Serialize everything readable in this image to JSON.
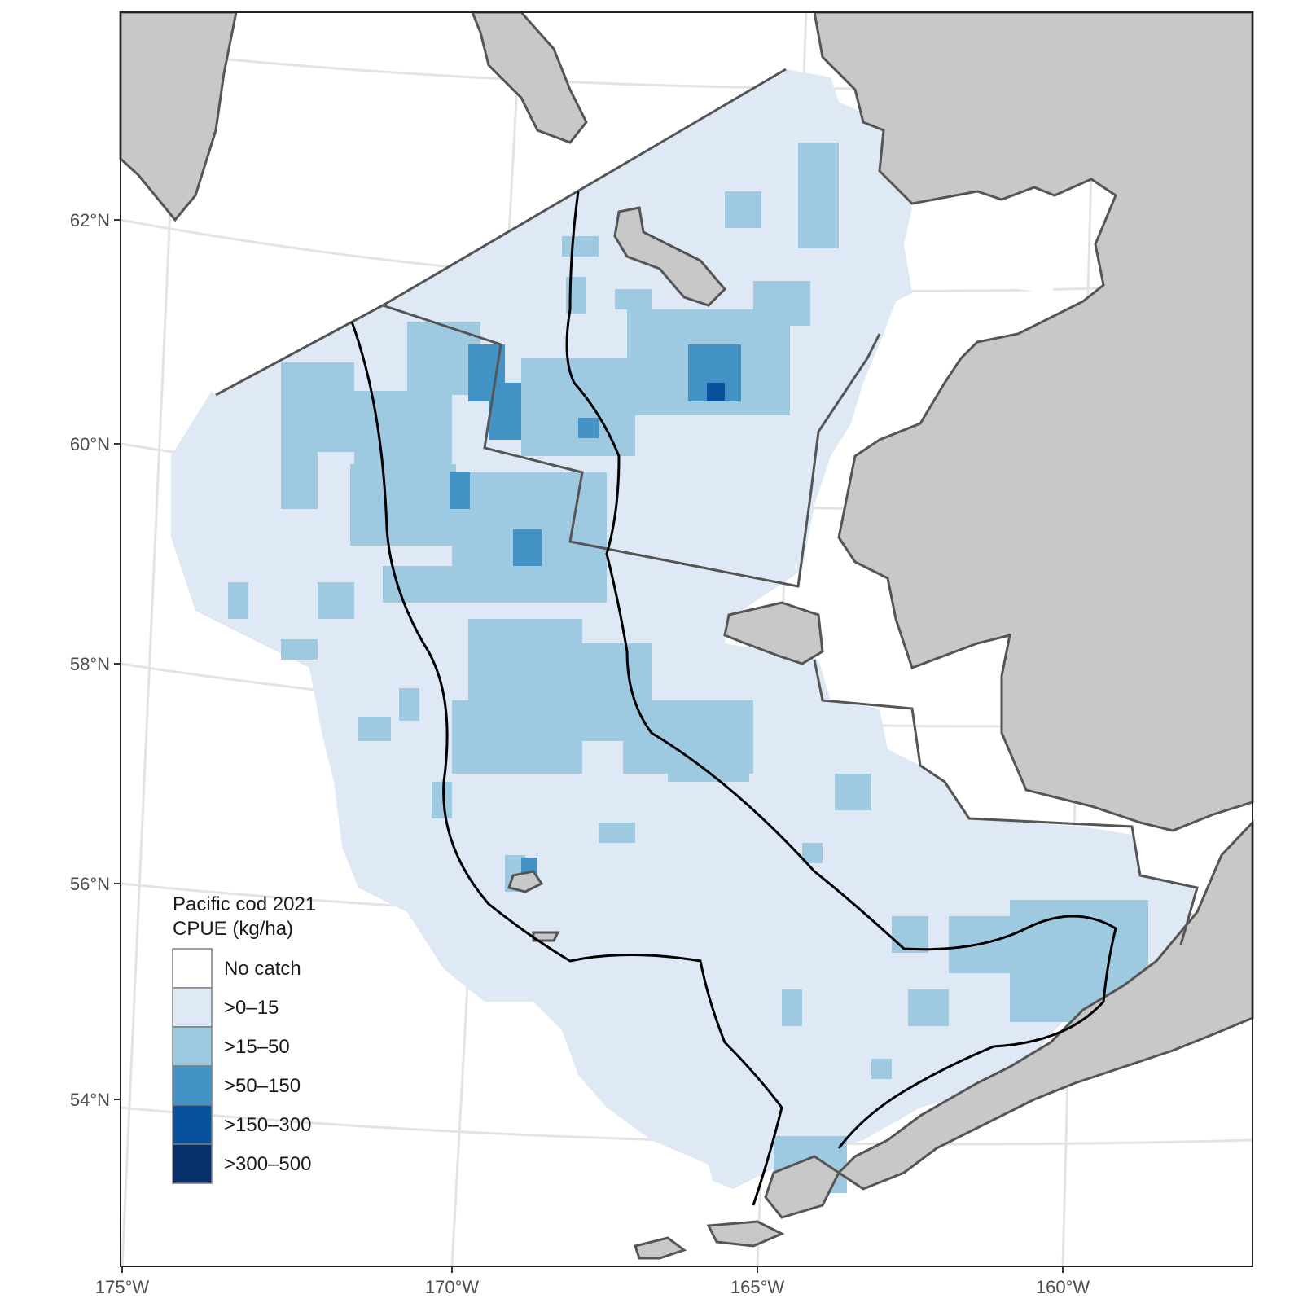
{
  "legend": {
    "title_line1": "Pacific cod 2021",
    "title_line2": "CPUE (kg/ha)",
    "items": [
      {
        "label": "No catch",
        "color": "#ffffff"
      },
      {
        "label": ">0–15",
        "color": "#dfe9f5"
      },
      {
        "label": ">15–50",
        "color": "#9ecae1"
      },
      {
        "label": ">50–150",
        "color": "#4292c6"
      },
      {
        "label": ">150–300",
        "color": "#08519c"
      },
      {
        "label": ">300–500",
        "color": "#08306b"
      }
    ]
  },
  "axes": {
    "y_labels": [
      "62°N",
      "60°N",
      "58°N",
      "56°N",
      "54°N"
    ],
    "x_labels": [
      "175°W",
      "170°W",
      "165°W",
      "160°W"
    ]
  },
  "colors": {
    "land": "#c8c8c8",
    "coast": "#555555",
    "graticule": "#e6e6e6",
    "stratum_line": "#555555",
    "contour_line": "#000000"
  },
  "cpue_cells": {
    "low_15_50": "light blue cells scattered across the shelf",
    "mid_50_150": "medium blue cells near St. Matthew area and north",
    "high_150_300": "single dark cell near 60.5N 165.5W"
  }
}
